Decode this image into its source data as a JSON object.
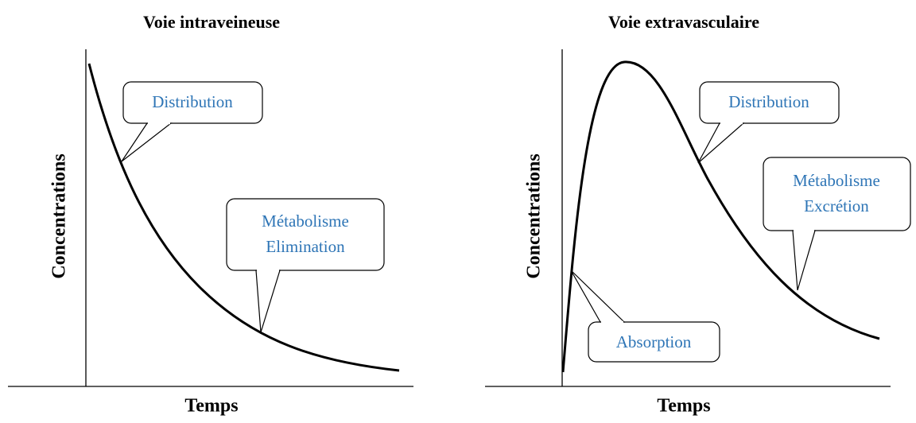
{
  "panels": [
    {
      "title": "Voie intraveineuse",
      "y_label": "Concentrations",
      "x_label": "Temps",
      "callouts": [
        {
          "lines": [
            "Distribution"
          ]
        },
        {
          "lines": [
            "Métabolisme",
            "Elimination"
          ]
        }
      ]
    },
    {
      "title": "Voie extravasculaire",
      "y_label": "Concentrations",
      "x_label": "Temps",
      "callouts": [
        {
          "lines": [
            "Distribution"
          ]
        },
        {
          "lines": [
            "Métabolisme",
            "Excrétion"
          ]
        },
        {
          "lines": [
            "Absorption"
          ]
        }
      ]
    }
  ]
}
